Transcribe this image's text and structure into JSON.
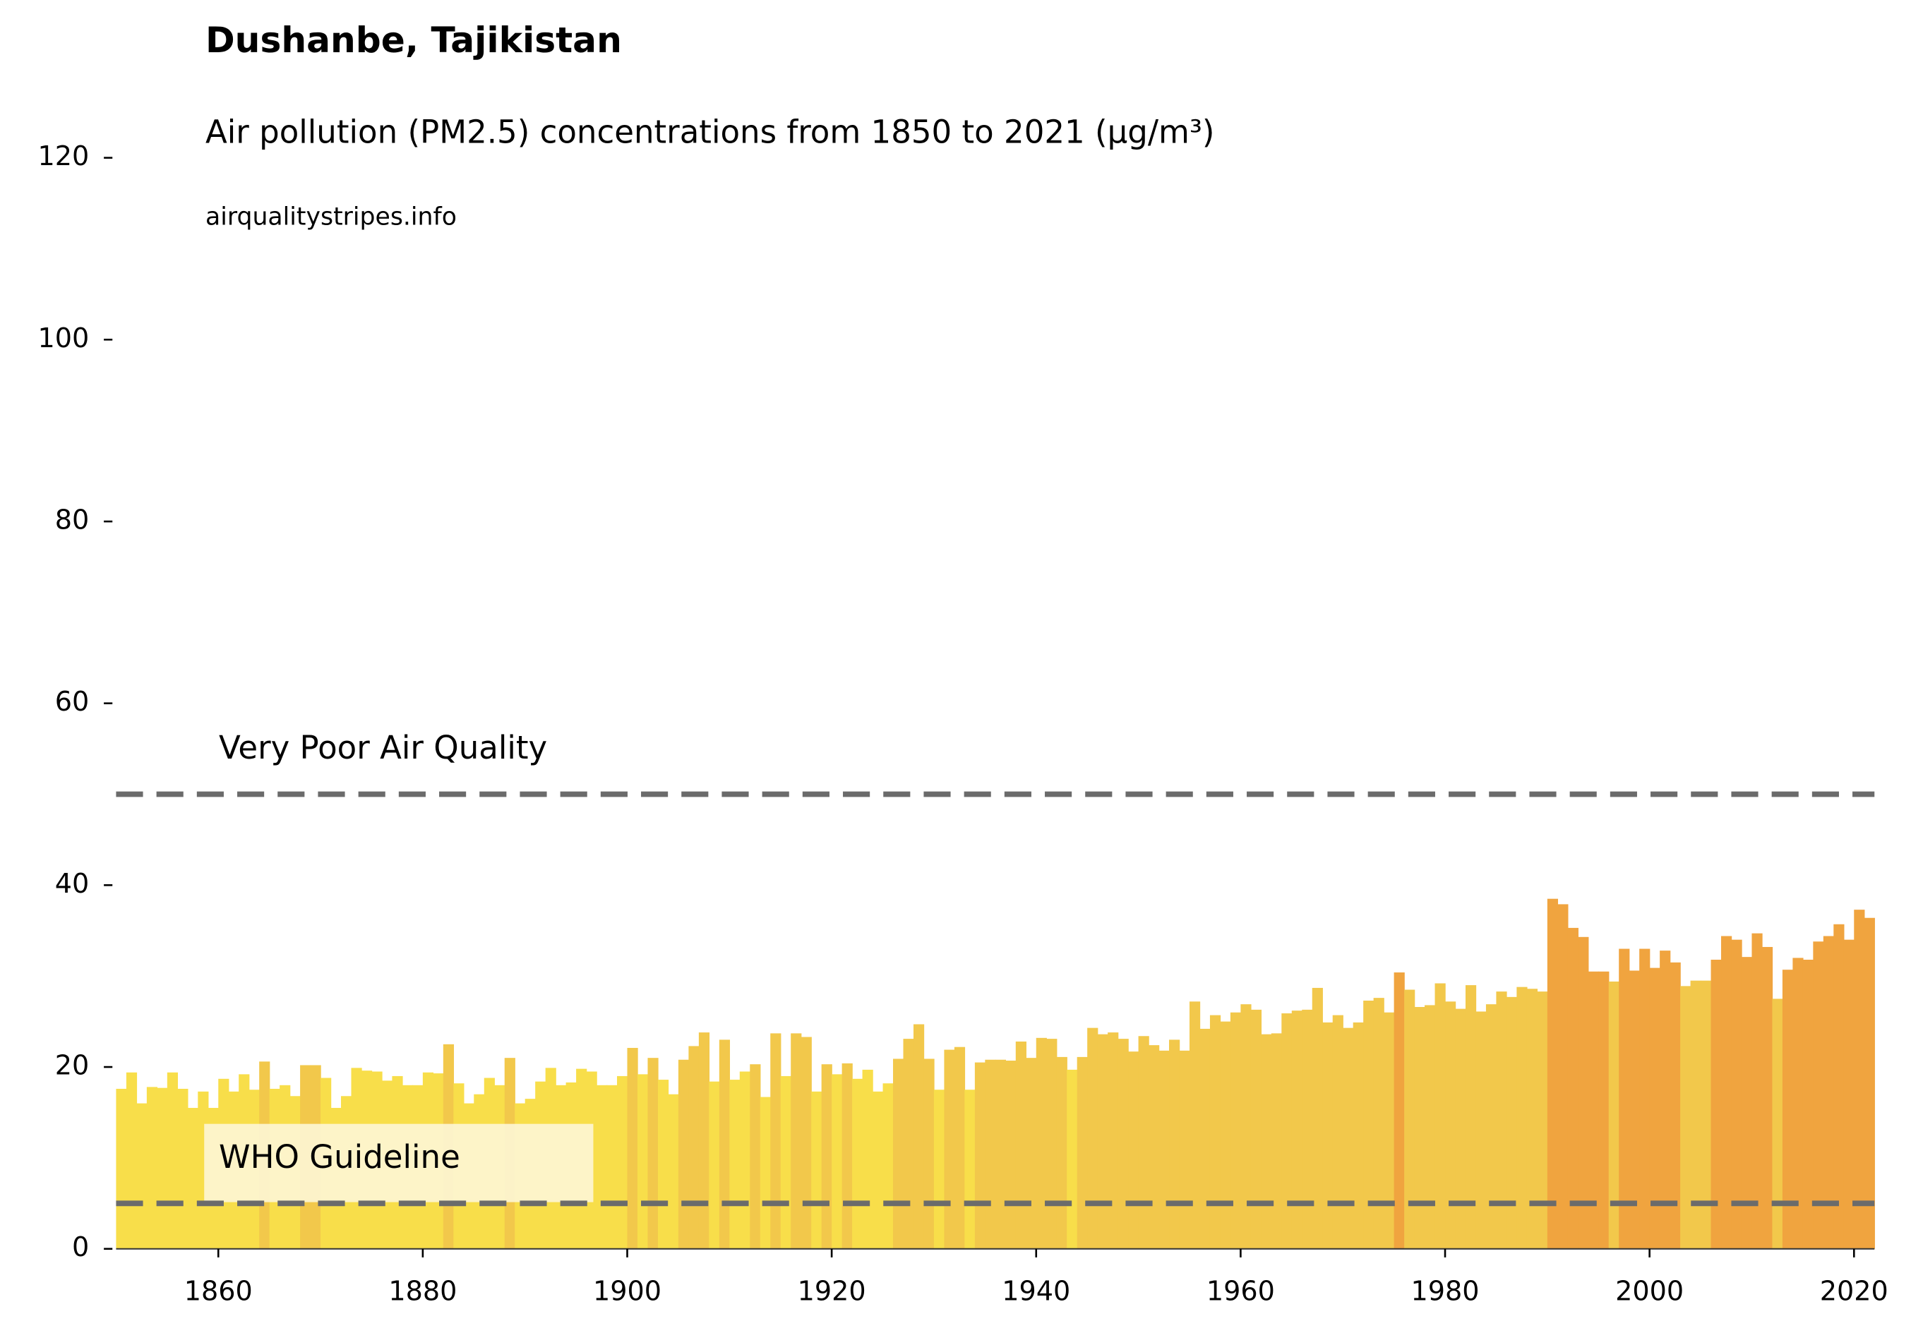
{
  "chart_data": {
    "type": "bar",
    "title": "Dushanbe, Tajikistan",
    "subtitle": "Air pollution (PM2.5) concentrations from 1850 to 2021 (μg/m³)",
    "source": "airqualitystripes.info",
    "x": [
      1850,
      1851,
      1852,
      1853,
      1854,
      1855,
      1856,
      1857,
      1858,
      1859,
      1860,
      1861,
      1862,
      1863,
      1864,
      1865,
      1866,
      1867,
      1868,
      1869,
      1870,
      1871,
      1872,
      1873,
      1874,
      1875,
      1876,
      1877,
      1878,
      1879,
      1880,
      1881,
      1882,
      1883,
      1884,
      1885,
      1886,
      1887,
      1888,
      1889,
      1890,
      1891,
      1892,
      1893,
      1894,
      1895,
      1896,
      1897,
      1898,
      1899,
      1900,
      1901,
      1902,
      1903,
      1904,
      1905,
      1906,
      1907,
      1908,
      1909,
      1910,
      1911,
      1912,
      1913,
      1914,
      1915,
      1916,
      1917,
      1918,
      1919,
      1920,
      1921,
      1922,
      1923,
      1924,
      1925,
      1926,
      1927,
      1928,
      1929,
      1930,
      1931,
      1932,
      1933,
      1934,
      1935,
      1936,
      1937,
      1938,
      1939,
      1940,
      1941,
      1942,
      1943,
      1944,
      1945,
      1946,
      1947,
      1948,
      1949,
      1950,
      1951,
      1952,
      1953,
      1954,
      1955,
      1956,
      1957,
      1958,
      1959,
      1960,
      1961,
      1962,
      1963,
      1964,
      1965,
      1966,
      1967,
      1968,
      1969,
      1970,
      1971,
      1972,
      1973,
      1974,
      1975,
      1976,
      1977,
      1978,
      1979,
      1980,
      1981,
      1982,
      1983,
      1984,
      1985,
      1986,
      1987,
      1988,
      1989,
      1990,
      1991,
      1992,
      1993,
      1994,
      1995,
      1996,
      1997,
      1998,
      1999,
      2000,
      2001,
      2002,
      2003,
      2004,
      2005,
      2006,
      2007,
      2008,
      2009,
      2010,
      2011,
      2012,
      2013,
      2014,
      2015,
      2016,
      2017,
      2018,
      2019,
      2020,
      2021
    ],
    "values": [
      17.6,
      19.4,
      16,
      17.8,
      17.7,
      19.4,
      17.6,
      15.5,
      17.3,
      15.5,
      18.7,
      17.3,
      19.2,
      17.5,
      20.6,
      17.6,
      18,
      16.8,
      20.2,
      20.2,
      18.8,
      15.5,
      16.8,
      19.9,
      19.6,
      19.5,
      18.5,
      19,
      18,
      18,
      19.4,
      19.3,
      22.5,
      18.2,
      16,
      17,
      18.8,
      18,
      21,
      16,
      16.5,
      18.4,
      19.9,
      18,
      18.3,
      19.8,
      19.5,
      18,
      18,
      19,
      22.1,
      19.2,
      21,
      18.6,
      17,
      20.8,
      22.3,
      23.8,
      18.4,
      23,
      18.6,
      19.5,
      20.3,
      16.7,
      23.7,
      19,
      23.7,
      23.3,
      17.3,
      20.3,
      19.2,
      20.4,
      18.7,
      19.7,
      17.3,
      18.2,
      20.9,
      23.1,
      24.7,
      20.9,
      17.5,
      21.9,
      22.2,
      17.5,
      20.5,
      20.8,
      20.8,
      20.7,
      22.8,
      21,
      23.2,
      23.1,
      21.1,
      19.7,
      21.1,
      24.3,
      23.6,
      23.8,
      23.1,
      21.7,
      23.4,
      22.4,
      21.8,
      23,
      21.8,
      27.2,
      24.2,
      25.7,
      25,
      26,
      26.9,
      26.3,
      23.6,
      23.7,
      25.9,
      26.2,
      26.3,
      28.7,
      24.9,
      25.7,
      24.3,
      24.9,
      27.3,
      27.6,
      26,
      30.4,
      28.5,
      26.6,
      26.8,
      29.2,
      27.2,
      26.4,
      29,
      26.1,
      26.9,
      28.3,
      27.7,
      28.8,
      28.6,
      28.3,
      38.5,
      37.9,
      35.3,
      34.3,
      30.5,
      30.5,
      29.4,
      33,
      30.6,
      33,
      30.9,
      32.8,
      31.5,
      28.9,
      29.5,
      29.5,
      31.8,
      34.4,
      34,
      32.1,
      34.7,
      33.2,
      27.5,
      30.7,
      32,
      31.8,
      33.8,
      34.4,
      35.7,
      34,
      37.3,
      36.4
    ],
    "colors": [
      "#f8de4a",
      "#f8de4a",
      "#f8de4a",
      "#f8de4a",
      "#f8de4a",
      "#f8de4a",
      "#f8de4a",
      "#f8de4a",
      "#f8de4a",
      "#f8de4a",
      "#f8de4a",
      "#f8de4a",
      "#f8de4a",
      "#f8de4a",
      "#f2c84b",
      "#f8de4a",
      "#f8de4a",
      "#f8de4a",
      "#f2c84b",
      "#f2c84b",
      "#f8de4a",
      "#f8de4a",
      "#f8de4a",
      "#f8de4a",
      "#f8de4a",
      "#f8de4a",
      "#f8de4a",
      "#f8de4a",
      "#f8de4a",
      "#f8de4a",
      "#f8de4a",
      "#f8de4a",
      "#f2c84b",
      "#f8de4a",
      "#f8de4a",
      "#f8de4a",
      "#f8de4a",
      "#f8de4a",
      "#f2c84b",
      "#f8de4a",
      "#f8de4a",
      "#f8de4a",
      "#f8de4a",
      "#f8de4a",
      "#f8de4a",
      "#f8de4a",
      "#f8de4a",
      "#f8de4a",
      "#f8de4a",
      "#f8de4a",
      "#f2c84b",
      "#f8de4a",
      "#f2c84b",
      "#f8de4a",
      "#f8de4a",
      "#f2c84b",
      "#f2c84b",
      "#f2c84b",
      "#f8de4a",
      "#f2c84b",
      "#f8de4a",
      "#f8de4a",
      "#f2c84b",
      "#f8de4a",
      "#f2c84b",
      "#f8de4a",
      "#f2c84b",
      "#f2c84b",
      "#f8de4a",
      "#f2c84b",
      "#f8de4a",
      "#f2c84b",
      "#f8de4a",
      "#f8de4a",
      "#f8de4a",
      "#f8de4a",
      "#f2c84b",
      "#f2c84b",
      "#f2c84b",
      "#f2c84b",
      "#f8de4a",
      "#f2c84b",
      "#f2c84b",
      "#f8de4a",
      "#f2c84b",
      "#f2c84b",
      "#f2c84b",
      "#f2c84b",
      "#f2c84b",
      "#f2c84b",
      "#f2c84b",
      "#f2c84b",
      "#f2c84b",
      "#f8de4a",
      "#f2c84b",
      "#f2c84b",
      "#f2c84b",
      "#f2c84b",
      "#f2c84b",
      "#f2c84b",
      "#f2c84b",
      "#f2c84b",
      "#f2c84b",
      "#f2c84b",
      "#f2c84b",
      "#f2c84b",
      "#f2c84b",
      "#f2c84b",
      "#f2c84b",
      "#f2c84b",
      "#f2c84b",
      "#f2c84b",
      "#f2c84b",
      "#f2c84b",
      "#f2c84b",
      "#f2c84b",
      "#f2c84b",
      "#f2c84b",
      "#f2c84b",
      "#f2c84b",
      "#f2c84b",
      "#f2c84b",
      "#f2c84b",
      "#f2c84b",
      "#f2c84b",
      "#f0a43f",
      "#f2c84b",
      "#f2c84b",
      "#f2c84b",
      "#f2c84b",
      "#f2c84b",
      "#f2c84b",
      "#f2c84b",
      "#f2c84b",
      "#f2c84b",
      "#f2c84b",
      "#f2c84b",
      "#f2c84b",
      "#f2c84b",
      "#f2c84b",
      "#f0a43f",
      "#f0a43f",
      "#f0a43f",
      "#f0a43f",
      "#f0a43f",
      "#f0a43f",
      "#f2c84b",
      "#f0a43f",
      "#f0a43f",
      "#f0a43f",
      "#f0a43f",
      "#f0a43f",
      "#f0a43f",
      "#f2c84b",
      "#f2c84b",
      "#f2c84b",
      "#f0a43f",
      "#f0a43f",
      "#f0a43f",
      "#f0a43f",
      "#f0a43f",
      "#f0a43f",
      "#f2c84b",
      "#f0a43f",
      "#f0a43f",
      "#f0a43f",
      "#f0a43f",
      "#f0a43f",
      "#f0a43f",
      "#f0a43f",
      "#f0a43f",
      "#f0a43f"
    ],
    "reference_lines": [
      {
        "value": 50,
        "label": "Very Poor Air Quality"
      },
      {
        "value": 5,
        "label": "WHO Guideline"
      }
    ],
    "reference_color": "#6b6b6b",
    "xlim": [
      1850,
      2022
    ],
    "xticks": [
      1860,
      1880,
      1900,
      1920,
      1940,
      1960,
      1980,
      2000,
      2020
    ],
    "ylim": [
      0,
      120
    ],
    "yticks": [
      0,
      20,
      40,
      60,
      80,
      100,
      120
    ]
  }
}
